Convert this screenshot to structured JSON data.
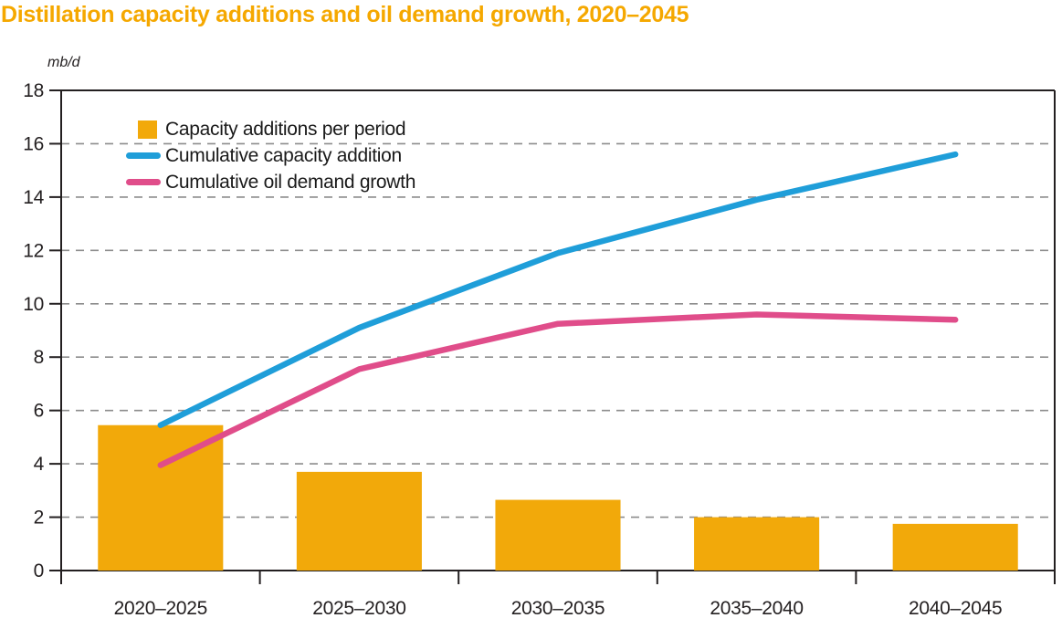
{
  "chart_data": {
    "type": "combo-bar-line",
    "title": "Distillation capacity additions and oil demand growth, 2020–2045",
    "unit_label": "mb/d",
    "categories": [
      "2020–2025",
      "2025–2030",
      "2030–2035",
      "2035–2040",
      "2040–2045"
    ],
    "bar_series": {
      "name": "Capacity additions per period",
      "color": "#F2A90A",
      "values": [
        5.45,
        3.7,
        2.65,
        2.0,
        1.75
      ]
    },
    "line_series": [
      {
        "name": "Cumulative capacity addition",
        "color": "#1F9ED9",
        "values": [
          5.45,
          9.1,
          11.9,
          13.9,
          15.6
        ]
      },
      {
        "name": "Cumulative oil demand growth",
        "color": "#E04D8A",
        "values": [
          3.95,
          7.55,
          9.25,
          9.6,
          9.4
        ]
      }
    ],
    "ylim": [
      0,
      18
    ],
    "yticks": [
      0,
      2,
      4,
      6,
      8,
      10,
      12,
      14,
      16,
      18
    ],
    "grid": "dashed-horizontal",
    "legend_position": "top-left-inside",
    "colors": {
      "title": "#F5A800",
      "axis_text": "#231F20",
      "gridline": "#8C8C8C",
      "background": "#FFFFFF"
    }
  }
}
